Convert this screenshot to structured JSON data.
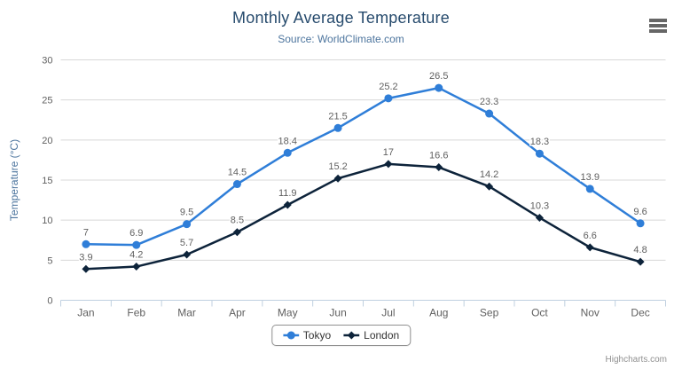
{
  "header": {
    "title": "Monthly Average Temperature",
    "subtitle": "Source: WorldClimate.com"
  },
  "credits_label": "Highcharts.com",
  "chart_data": {
    "type": "line",
    "title": "Monthly Average Temperature",
    "subtitle": "Source: WorldClimate.com",
    "categories": [
      "Jan",
      "Feb",
      "Mar",
      "Apr",
      "May",
      "Jun",
      "Jul",
      "Aug",
      "Sep",
      "Oct",
      "Nov",
      "Dec"
    ],
    "series": [
      {
        "name": "Tokyo",
        "marker": "circle",
        "color": "#2f7ed8",
        "values": [
          7,
          6.9,
          9.5,
          14.5,
          18.4,
          21.5,
          25.2,
          26.5,
          23.3,
          18.3,
          13.9,
          9.6
        ]
      },
      {
        "name": "London",
        "marker": "diamond",
        "color": "#0d233a",
        "values": [
          3.9,
          4.2,
          5.7,
          8.5,
          11.9,
          15.2,
          17,
          16.6,
          14.2,
          10.3,
          6.6,
          4.8
        ]
      }
    ],
    "xlabel": "",
    "ylabel": "Temperature (°C)",
    "ylim": [
      0,
      30
    ],
    "yticks": [
      0,
      5,
      10,
      15,
      20,
      25,
      30
    ],
    "grid": true,
    "data_labels": true,
    "legend_position": "bottom-center"
  },
  "colors": {
    "title": "#274b6d",
    "subtitle": "#4d759e",
    "axis_title": "#4d759e",
    "tick_label": "#606060",
    "data_label": "#606060",
    "grid_line": "#d8d8d8",
    "axis_line": "#c0d0e0",
    "legend_text": "#333333",
    "legend_border": "#909090",
    "credits": "#909090",
    "menu_icon": "#666666",
    "background": "#ffffff"
  }
}
